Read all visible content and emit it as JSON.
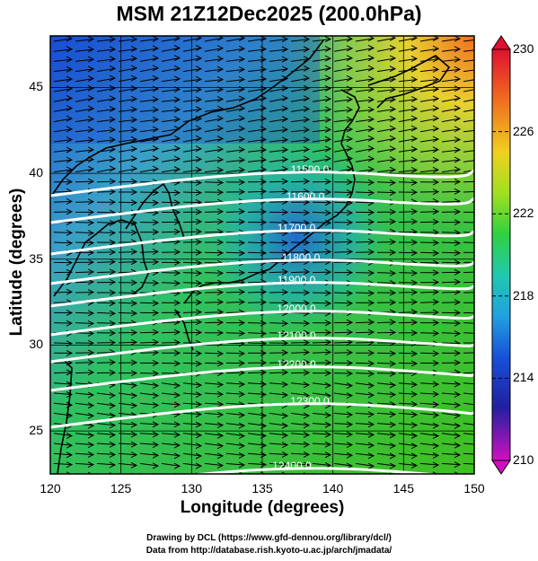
{
  "title": "MSM 21Z12Dec2025 (200.0hPa)",
  "xlabel": "Longitude (degrees)",
  "ylabel": "Latitude  (degrees)",
  "xticks": [
    "120",
    "125",
    "130",
    "135",
    "140",
    "145",
    "150"
  ],
  "yticks": [
    "25",
    "30",
    "35",
    "40",
    "45"
  ],
  "colorbar": {
    "ticks": [
      "230",
      "226",
      "222",
      "218",
      "214",
      "210"
    ],
    "colors": [
      "#e0103a",
      "#f57a20",
      "#f0d020",
      "#c8e020",
      "#50d020",
      "#20b8b0",
      "#1860e0",
      "#2020a0",
      "#c020c0"
    ]
  },
  "contours": [
    "11500.0",
    "11600.0",
    "11700.0",
    "11800.0",
    "11900.0",
    "12000.0",
    "12100.0",
    "12200.0",
    "12300.0",
    "12400.0"
  ],
  "footer": {
    "line1": "Drawing by DCL (https://www.gfd-dennou.org/library/dcl/)",
    "line2": "Data from http://database.rish.kyoto-u.ac.jp/arch/jmadata/"
  },
  "chart_data": {
    "type": "heatmap",
    "variable": "temperature shading, geopotential height contours, wind vectors",
    "level": "200.0hPa",
    "xlim": [
      120,
      150
    ],
    "ylim": [
      22.5,
      48
    ],
    "color_range": [
      210,
      230
    ],
    "contour_levels": [
      11500,
      11600,
      11700,
      11800,
      11900,
      12000,
      12100,
      12200,
      12300,
      12400
    ],
    "wind_direction": "westerly"
  }
}
